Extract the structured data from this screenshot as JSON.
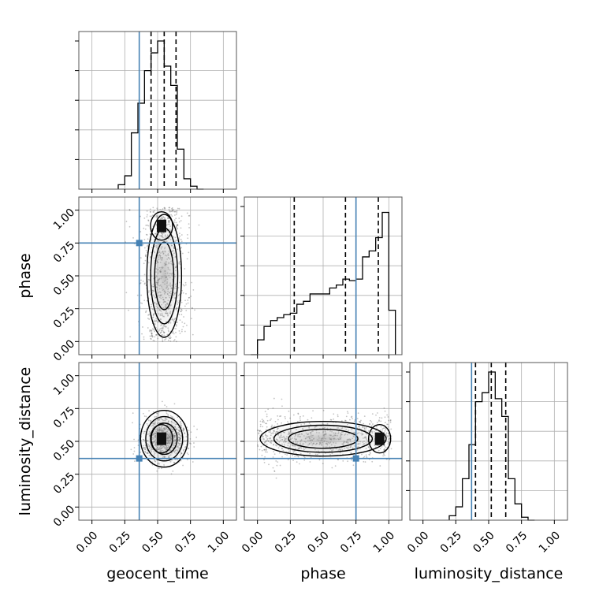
{
  "chart_data": {
    "type": "corner",
    "title": "",
    "parameters": [
      {
        "name": "geocent_time",
        "label": "geocent_time",
        "range": [
          -0.1,
          1.1
        ],
        "truth": 0.36,
        "quantiles": [
          0.45,
          0.55,
          0.64
        ]
      },
      {
        "name": "phase",
        "label": "phase",
        "range": [
          -0.1,
          1.1
        ],
        "truth": 0.75,
        "quantiles": [
          0.28,
          0.67,
          0.92
        ]
      },
      {
        "name": "luminosity_distance",
        "label": "luminosity_distance",
        "range": [
          -0.1,
          1.1
        ],
        "truth": 0.37,
        "quantiles": [
          0.4,
          0.52,
          0.63
        ]
      }
    ],
    "ticks": [
      "0.00",
      "0.25",
      "0.50",
      "0.75",
      "1.00"
    ],
    "tick_values": [
      0.0,
      0.25,
      0.5,
      0.75,
      1.0
    ],
    "grid": true,
    "truth_color": "#4682b4",
    "histograms": {
      "geocent_time": {
        "bin_edges": [
          0.2,
          0.25,
          0.3,
          0.35,
          0.4,
          0.45,
          0.5,
          0.55,
          0.6,
          0.65,
          0.7,
          0.75,
          0.8,
          0.85
        ],
        "counts": [
          0.03,
          0.09,
          0.38,
          0.58,
          0.8,
          0.92,
          1.0,
          0.83,
          0.7,
          0.27,
          0.07,
          0.02,
          0.0
        ]
      },
      "phase": {
        "bin_edges": [
          -0.05,
          0.0,
          0.05,
          0.1,
          0.15,
          0.2,
          0.25,
          0.3,
          0.35,
          0.4,
          0.45,
          0.5,
          0.55,
          0.6,
          0.65,
          0.7,
          0.75,
          0.8,
          0.85,
          0.9,
          0.95,
          1.0,
          1.05
        ],
        "counts": [
          0.0,
          0.1,
          0.19,
          0.23,
          0.25,
          0.27,
          0.28,
          0.34,
          0.36,
          0.41,
          0.41,
          0.41,
          0.45,
          0.47,
          0.51,
          0.5,
          0.51,
          0.66,
          0.7,
          0.79,
          0.96,
          0.3
        ]
      },
      "luminosity_distance": {
        "bin_edges": [
          0.2,
          0.25,
          0.3,
          0.35,
          0.4,
          0.45,
          0.5,
          0.55,
          0.6,
          0.65,
          0.7,
          0.75,
          0.8,
          0.85
        ],
        "counts": [
          0.03,
          0.09,
          0.28,
          0.51,
          0.8,
          0.86,
          1.0,
          0.82,
          0.7,
          0.28,
          0.11,
          0.02,
          0.0
        ]
      }
    },
    "joint_panels": [
      {
        "x": "geocent_time",
        "y": "phase",
        "mode": {
          "x": 0.53,
          "y": 0.88
        }
      },
      {
        "x": "geocent_time",
        "y": "luminosity_distance",
        "mode": {
          "x": 0.53,
          "y": 0.52
        }
      },
      {
        "x": "phase",
        "y": "luminosity_distance",
        "mode": {
          "x": 0.93,
          "y": 0.52
        }
      }
    ]
  }
}
